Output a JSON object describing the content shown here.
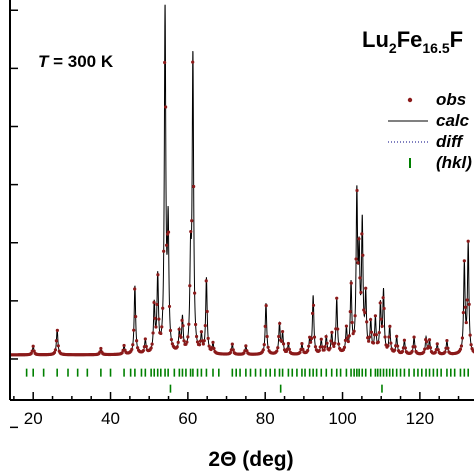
{
  "chart_data": {
    "type": "line",
    "title_parts": {
      "main": "Lu",
      "sub1": "2",
      "mid": "Fe",
      "sub2": "16.5",
      "tail": "F"
    },
    "annotation": {
      "prefix": "T",
      "rest": " = 300 K"
    },
    "xlabel": "2Θ (deg)",
    "ylabel": "",
    "xlim": [
      14,
      134
    ],
    "ylim": [
      -0.12,
      1.05
    ],
    "x_ticks": [
      20,
      40,
      60,
      80,
      100,
      120
    ],
    "y_axis_tick_labels_visible": false,
    "grid": false,
    "legend_position": "top-right",
    "legend": [
      {
        "label": "obs",
        "marker": "dot",
        "color": "#8b1a1a"
      },
      {
        "label": "calc",
        "marker": "line",
        "color": "#000000"
      },
      {
        "label": "diff",
        "marker": "dotted",
        "color": "#000080"
      },
      {
        "label": "(hkl)",
        "marker": "bar",
        "color": "#008000"
      }
    ],
    "background_level": 0.0,
    "peaks": [
      {
        "x": 20.0,
        "y": 0.025
      },
      {
        "x": 26.2,
        "y": 0.075
      },
      {
        "x": 37.5,
        "y": 0.018
      },
      {
        "x": 43.5,
        "y": 0.025
      },
      {
        "x": 46.3,
        "y": 0.2
      },
      {
        "x": 49.0,
        "y": 0.04
      },
      {
        "x": 51.3,
        "y": 0.14
      },
      {
        "x": 52.2,
        "y": 0.22
      },
      {
        "x": 54.1,
        "y": 1.0
      },
      {
        "x": 54.9,
        "y": 0.36
      },
      {
        "x": 57.8,
        "y": 0.06
      },
      {
        "x": 58.6,
        "y": 0.1
      },
      {
        "x": 60.7,
        "y": 0.25
      },
      {
        "x": 61.3,
        "y": 0.86
      },
      {
        "x": 63.5,
        "y": 0.05
      },
      {
        "x": 64.8,
        "y": 0.22
      },
      {
        "x": 66.5,
        "y": 0.03
      },
      {
        "x": 71.5,
        "y": 0.03
      },
      {
        "x": 75.0,
        "y": 0.025
      },
      {
        "x": 80.2,
        "y": 0.15
      },
      {
        "x": 83.7,
        "y": 0.09
      },
      {
        "x": 84.5,
        "y": 0.06
      },
      {
        "x": 86.0,
        "y": 0.03
      },
      {
        "x": 89.5,
        "y": 0.03
      },
      {
        "x": 91.5,
        "y": 0.04
      },
      {
        "x": 92.4,
        "y": 0.17
      },
      {
        "x": 94.5,
        "y": 0.04
      },
      {
        "x": 95.8,
        "y": 0.05
      },
      {
        "x": 97.2,
        "y": 0.06
      },
      {
        "x": 98.5,
        "y": 0.16
      },
      {
        "x": 101.0,
        "y": 0.07
      },
      {
        "x": 102.2,
        "y": 0.2
      },
      {
        "x": 103.7,
        "y": 0.45
      },
      {
        "x": 104.3,
        "y": 0.26
      },
      {
        "x": 105.1,
        "y": 0.37
      },
      {
        "x": 106.0,
        "y": 0.16
      },
      {
        "x": 107.3,
        "y": 0.09
      },
      {
        "x": 108.5,
        "y": 0.1
      },
      {
        "x": 109.8,
        "y": 0.14
      },
      {
        "x": 110.6,
        "y": 0.18
      },
      {
        "x": 112.2,
        "y": 0.08
      },
      {
        "x": 114.0,
        "y": 0.05
      },
      {
        "x": 116.0,
        "y": 0.04
      },
      {
        "x": 118.5,
        "y": 0.05
      },
      {
        "x": 121.6,
        "y": 0.05
      },
      {
        "x": 122.5,
        "y": 0.04
      },
      {
        "x": 124.5,
        "y": 0.03
      },
      {
        "x": 127.0,
        "y": 0.04
      },
      {
        "x": 131.5,
        "y": 0.26
      },
      {
        "x": 132.5,
        "y": 0.32
      }
    ],
    "hkl_positions": [
      18.3,
      20.0,
      22.7,
      26.2,
      29.0,
      31.5,
      34.0,
      37.5,
      40.0,
      43.5,
      45.2,
      46.3,
      48.0,
      49.0,
      50.5,
      51.3,
      52.2,
      53.0,
      54.1,
      54.9,
      56.5,
      57.8,
      58.6,
      59.5,
      60.7,
      61.3,
      62.5,
      63.5,
      64.8,
      66.5,
      68.0,
      71.5,
      72.5,
      73.5,
      75.0,
      76.2,
      77.5,
      78.8,
      80.2,
      81.3,
      82.5,
      83.7,
      84.5,
      86.0,
      87.0,
      88.2,
      89.5,
      90.3,
      91.5,
      92.4,
      93.3,
      94.5,
      95.8,
      97.2,
      98.5,
      99.5,
      101.0,
      102.2,
      103.0,
      103.7,
      104.3,
      105.1,
      106.0,
      107.3,
      108.5,
      109.1,
      109.8,
      110.6,
      111.4,
      112.2,
      113.0,
      114.0,
      115.0,
      116.0,
      117.2,
      118.5,
      119.5,
      120.5,
      121.6,
      122.5,
      123.5,
      124.5,
      125.5,
      127.0,
      128.0,
      129.0,
      130.5,
      131.5,
      132.5
    ],
    "hkl_offset": -0.04,
    "hkl_second_row": [
      55.5,
      84.0,
      110.2
    ],
    "diff_baseline": -0.2
  }
}
